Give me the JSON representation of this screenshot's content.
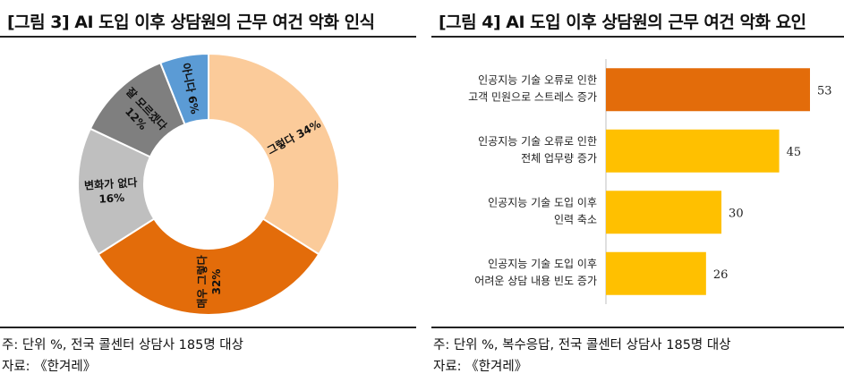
{
  "left": {
    "title": "[그림 3] AI 도입 이후 상담원의 근무 여건 악화 인식",
    "note_line1": "주: 단위 %, 전국 콜센터 상담사 185명 대상",
    "note_line2": "자료: 《한겨레》"
  },
  "right": {
    "title": "[그림 4] AI 도입 이후 상담원의 근무 여건 악화 요인",
    "note_line1": "주: 단위 %, 복수응답, 전국 콜센터 상담사 185명 대상",
    "note_line2": "자료: 《한겨레》"
  },
  "chart_data": [
    {
      "type": "pie",
      "donut": true,
      "legend": "none",
      "slices": [
        {
          "label": "그렇다",
          "value": 34,
          "color": "#FBCB9A",
          "text": "그렇다 34%"
        },
        {
          "label": "매우 그렇다",
          "value": 32,
          "color": "#E36C0A",
          "text": "매우 그렇다",
          "text2": "32%"
        },
        {
          "label": "변화가 없다",
          "value": 16,
          "color": "#BFBFBF",
          "text": "변화가 없다",
          "text2": "16%"
        },
        {
          "label": "잘 모르겠다",
          "value": 12,
          "color": "#7F7F7F",
          "text": "잘 모르겠다",
          "text2": "12%"
        },
        {
          "label": "아니다",
          "value": 6,
          "color": "#5B9BD5",
          "text": "아니다 6%"
        }
      ]
    },
    {
      "type": "bar",
      "orientation": "horizontal",
      "xlim": [
        0,
        60
      ],
      "grid": false,
      "categories": [
        [
          "인공지능 기술 오류로 인한",
          "고객 민원으로 스트레스 증가"
        ],
        [
          "인공지능 기술 오류로 인한",
          "전체 업무량 증가"
        ],
        [
          "인공지능 기술 도입 이후",
          "인력 축소"
        ],
        [
          "인공지능 기술 도입 이후",
          "어려운 상담 내용 빈도 증가"
        ]
      ],
      "values": [
        53,
        45,
        30,
        26
      ],
      "colors": [
        "#E36C0A",
        "#FFC000",
        "#FFC000",
        "#FFC000"
      ]
    }
  ]
}
